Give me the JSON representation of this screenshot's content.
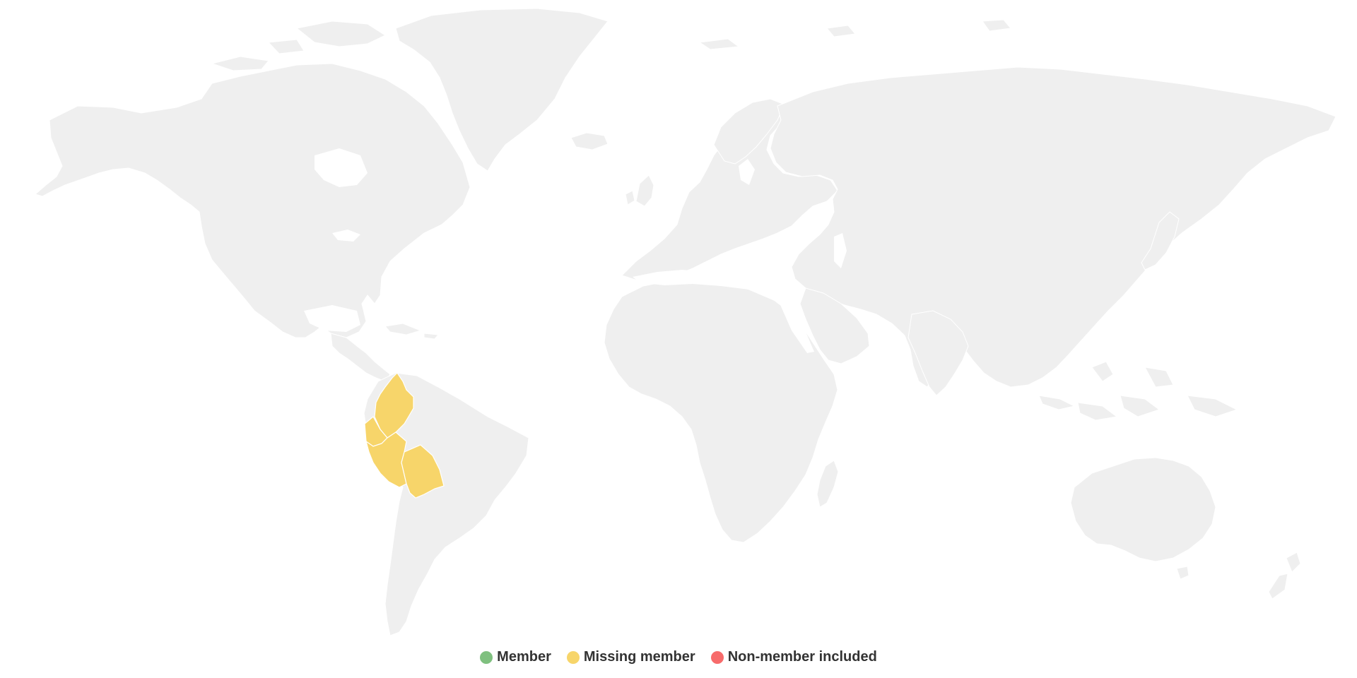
{
  "map": {
    "land_color": "#efefef",
    "background_color": "#ffffff",
    "highlighted_regions": [
      {
        "name": "Colombia",
        "status": "missing"
      },
      {
        "name": "Ecuador",
        "status": "missing"
      },
      {
        "name": "Peru",
        "status": "missing"
      },
      {
        "name": "Bolivia",
        "status": "missing"
      }
    ]
  },
  "legend": {
    "items": [
      {
        "key": "member",
        "label": "Member",
        "color": "#7fc07f"
      },
      {
        "key": "missing",
        "label": "Missing member",
        "color": "#f7d56a"
      },
      {
        "key": "nonmember",
        "label": "Non-member included",
        "color": "#f76b6b"
      }
    ]
  }
}
